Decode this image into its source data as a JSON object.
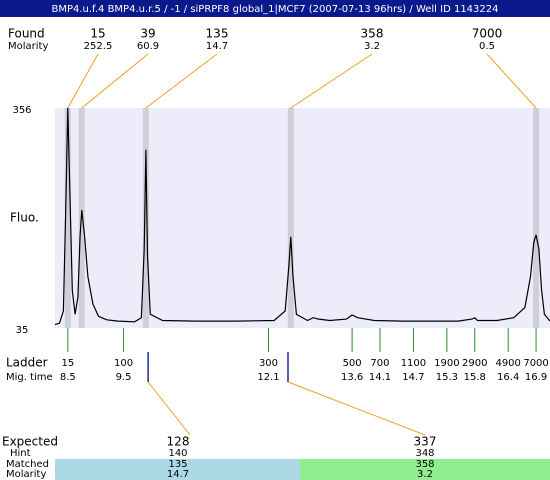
{
  "chart_data": {
    "type": "electropherogram",
    "title": "BMP4.u.f.4  BMP4.u.r.5 / -1 / siPRPF8 global_1|MCF7 (2007-07-13 96hrs) / Well ID 1143224",
    "ylabel": "Fluo.",
    "ylim": [
      35,
      356
    ],
    "yticks": [
      35,
      356
    ],
    "xlim": [
      8.27,
      17.15
    ],
    "trace": {
      "x": [
        8.27,
        8.35,
        8.42,
        8.46,
        8.5,
        8.54,
        8.58,
        8.63,
        8.68,
        8.72,
        8.75,
        8.8,
        8.86,
        8.95,
        9.05,
        9.2,
        9.4,
        9.7,
        9.82,
        9.87,
        9.9,
        9.93,
        9.98,
        10.2,
        10.8,
        11.5,
        12.2,
        12.4,
        12.47,
        12.5,
        12.54,
        12.6,
        12.8,
        12.9,
        13.0,
        13.2,
        13.5,
        13.6,
        13.7,
        14.0,
        14.5,
        15.0,
        15.5,
        15.75,
        15.8,
        15.85,
        16.2,
        16.5,
        16.7,
        16.8,
        16.86,
        16.9,
        16.95,
        17.0,
        17.05,
        17.15
      ],
      "values": [
        40,
        42,
        60,
        200,
        356,
        220,
        90,
        55,
        80,
        170,
        207,
        170,
        110,
        70,
        52,
        47,
        45,
        44,
        50,
        150,
        295,
        140,
        55,
        46,
        45,
        45,
        46,
        60,
        130,
        168,
        110,
        55,
        46,
        50,
        48,
        46,
        48,
        54,
        50,
        46,
        45,
        45,
        45,
        48,
        50,
        46,
        46,
        50,
        65,
        110,
        160,
        171,
        150,
        90,
        55,
        45
      ]
    },
    "found": {
      "label": "Found",
      "molarity_label": "Molarity",
      "sizes": [
        15,
        39,
        135,
        358,
        7000
      ],
      "molarity": [
        252.5,
        60.9,
        14.7,
        3.2,
        0.5
      ],
      "time": [
        8.5,
        8.75,
        9.9,
        12.5,
        16.9
      ]
    },
    "ladder": {
      "label": "Ladder",
      "time_label": "Mig. time",
      "sizes": [
        15,
        100,
        300,
        500,
        700,
        1100,
        1900,
        2900,
        4900,
        7000
      ],
      "time": [
        8.5,
        9.5,
        12.1,
        13.6,
        14.1,
        14.7,
        15.3,
        15.8,
        16.4,
        16.9
      ]
    },
    "expected": {
      "expected_label": "Expected",
      "hint_label": "Hint",
      "matched_label": "Matched",
      "molarity_label": "Molarity",
      "expected": [
        128,
        337
      ],
      "hint": [
        140,
        348
      ],
      "matched": [
        135,
        358
      ],
      "molarity": [
        14.7,
        3.2
      ],
      "time": [
        9.94,
        12.45
      ],
      "colors": [
        "#add8e6",
        "#90ee90"
      ],
      "expected_color": "#ff0000"
    }
  }
}
